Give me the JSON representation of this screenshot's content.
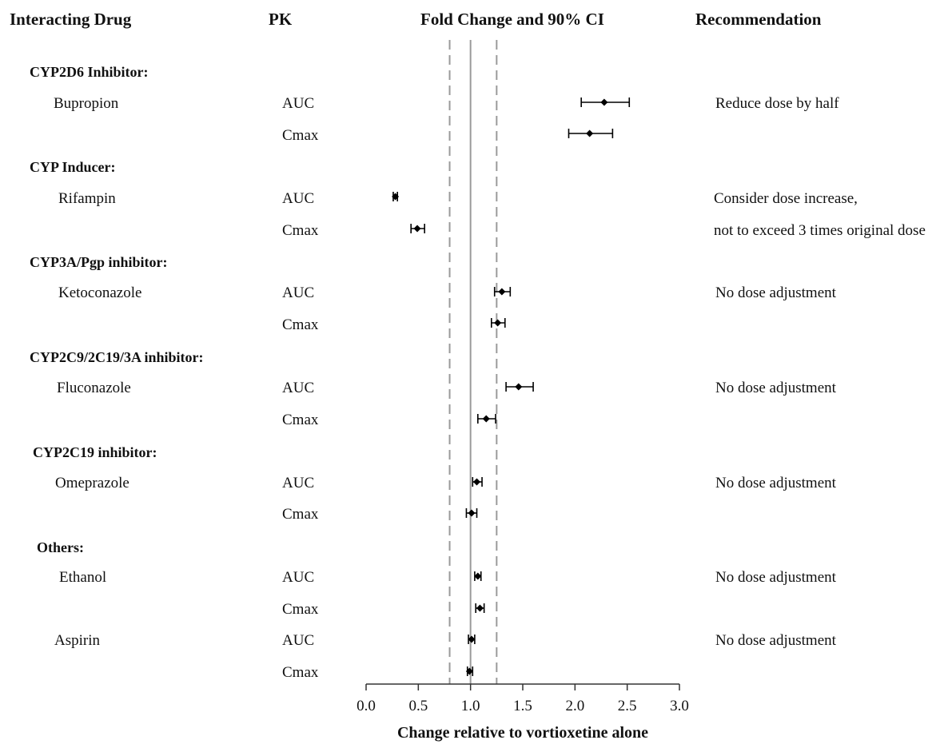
{
  "headers": {
    "drug": "Interacting Drug",
    "pk": "PK",
    "fold_change": "Fold Change and 90% CI",
    "recommendation": "Recommendation"
  },
  "categories": [
    "CYP2D6 Inhibitor:",
    "CYP Inducer:",
    "CYP3A/Pgp inhibitor:",
    "CYP2C9/2C19/3A inhibitor:",
    "CYP2C19 inhibitor:",
    "Others:"
  ],
  "drugs": [
    "Bupropion",
    "Rifampin",
    "Ketoconazole",
    "Fluconazole",
    "Omeprazole",
    "Ethanol",
    "Aspirin"
  ],
  "pk_labels": [
    "AUC",
    "Cmax",
    "AUC",
    "Cmax",
    "AUC",
    "Cmax",
    "AUC",
    "Cmax",
    "AUC",
    "Cmax",
    "AUC",
    "Cmax",
    "AUC",
    "Cmax"
  ],
  "recommendations": [
    "Reduce dose by half",
    "Consider dose increase,",
    "not to exceed 3 times original dose",
    "No dose adjustment",
    "No dose adjustment",
    "No dose adjustment",
    "No dose adjustment",
    "No dose adjustment"
  ],
  "chart_data": {
    "type": "scatter",
    "title": "Fold Change and 90% CI",
    "xlabel": "Change relative to vortioxetine alone",
    "xlim": [
      0.0,
      3.0
    ],
    "xticks": [
      "0.0",
      "0.5",
      "1.0",
      "1.5",
      "2.0",
      "2.5",
      "3.0"
    ],
    "reference_lines": [
      {
        "x": 1.0,
        "style": "solid"
      },
      {
        "x": 0.8,
        "style": "dashed"
      },
      {
        "x": 1.25,
        "style": "dashed"
      }
    ],
    "marker_color": "#000000",
    "reference_color": "#9a9a9a",
    "points": [
      {
        "drug": "Bupropion",
        "pk": "AUC",
        "estimate": 2.28,
        "lower": 2.06,
        "upper": 2.52
      },
      {
        "drug": "Bupropion",
        "pk": "Cmax",
        "estimate": 2.14,
        "lower": 1.94,
        "upper": 2.36
      },
      {
        "drug": "Rifampin",
        "pk": "AUC",
        "estimate": 0.28,
        "lower": 0.26,
        "upper": 0.3
      },
      {
        "drug": "Rifampin",
        "pk": "Cmax",
        "estimate": 0.49,
        "lower": 0.43,
        "upper": 0.56
      },
      {
        "drug": "Ketoconazole",
        "pk": "AUC",
        "estimate": 1.3,
        "lower": 1.23,
        "upper": 1.38
      },
      {
        "drug": "Ketoconazole",
        "pk": "Cmax",
        "estimate": 1.26,
        "lower": 1.2,
        "upper": 1.33
      },
      {
        "drug": "Fluconazole",
        "pk": "AUC",
        "estimate": 1.46,
        "lower": 1.34,
        "upper": 1.6
      },
      {
        "drug": "Fluconazole",
        "pk": "Cmax",
        "estimate": 1.15,
        "lower": 1.07,
        "upper": 1.24
      },
      {
        "drug": "Omeprazole",
        "pk": "AUC",
        "estimate": 1.06,
        "lower": 1.02,
        "upper": 1.11
      },
      {
        "drug": "Omeprazole",
        "pk": "Cmax",
        "estimate": 1.01,
        "lower": 0.96,
        "upper": 1.06
      },
      {
        "drug": "Ethanol",
        "pk": "AUC",
        "estimate": 1.07,
        "lower": 1.04,
        "upper": 1.1
      },
      {
        "drug": "Ethanol",
        "pk": "Cmax",
        "estimate": 1.09,
        "lower": 1.05,
        "upper": 1.13
      },
      {
        "drug": "Aspirin",
        "pk": "AUC",
        "estimate": 1.01,
        "lower": 0.98,
        "upper": 1.04
      },
      {
        "drug": "Aspirin",
        "pk": "Cmax",
        "estimate": 0.99,
        "lower": 0.97,
        "upper": 1.02
      }
    ]
  }
}
